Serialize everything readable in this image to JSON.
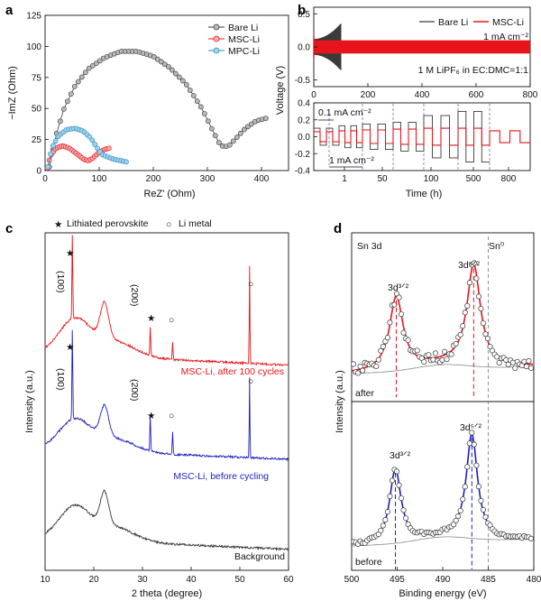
{
  "colors": {
    "bare": "#3a3a3a",
    "msc": "#e8141b",
    "mpc": "#2a8fc0",
    "blue": "#1d1fbf",
    "fit": "#e8141b",
    "guide": "#6a6ae0"
  },
  "panels": {
    "a": "a",
    "b": "b",
    "c": "c",
    "d": "d"
  },
  "chart_data": [
    {
      "panel": "a",
      "type": "scatter",
      "xlabel": "ReZ' (Ohm)",
      "ylabel": "−ImZ (Ohm)",
      "xlim": [
        0,
        450
      ],
      "ylim": [
        0,
        125
      ],
      "xticks": [
        "0",
        "100",
        "200",
        "300",
        "400"
      ],
      "yticks": [
        "0",
        "25",
        "50",
        "75",
        "100",
        "125"
      ],
      "legend_position": "top-right",
      "series": [
        {
          "name": "Bare Li",
          "color": "#3a3a3a",
          "x": [
            8,
            20,
            35,
            55,
            80,
            110,
            140,
            170,
            200,
            230,
            260,
            290,
            310,
            322,
            330,
            340,
            355,
            370,
            390,
            408
          ],
          "y": [
            3,
            28,
            50,
            68,
            82,
            91,
            96,
            96,
            92,
            83,
            70,
            50,
            32,
            22,
            19,
            20,
            27,
            34,
            40,
            42
          ]
        },
        {
          "name": "MSC-Li",
          "color": "#e8141b",
          "x": [
            4,
            10,
            20,
            32,
            45,
            60,
            72,
            80,
            88,
            98,
            110,
            118
          ],
          "y": [
            2,
            12,
            18,
            20,
            18,
            13,
            9,
            8,
            10,
            14,
            17,
            18
          ]
        },
        {
          "name": "MPC-Li",
          "color": "#2a8fc0",
          "x": [
            5,
            12,
            25,
            40,
            55,
            70,
            85,
            95,
            105,
            115,
            128,
            140,
            150
          ],
          "y": [
            3,
            18,
            28,
            33,
            34,
            32,
            26,
            19,
            13,
            11,
            9,
            8,
            7
          ]
        }
      ]
    },
    {
      "panel": "b",
      "type": "line",
      "ylabel": "Voltage (V)",
      "xlabel": "Time (h)",
      "top": {
        "xlim": [
          0,
          800
        ],
        "ylim": [
          -0.6,
          0.6
        ],
        "xticks": [
          "0",
          "200",
          "400",
          "600",
          "800"
        ],
        "yticks": [
          "-0.5",
          "0.0",
          "0.5"
        ],
        "legend": [
          {
            "name": "Bare Li",
            "color": "#3a3a3a"
          },
          {
            "name": "MSC-Li",
            "color": "#e8141b"
          }
        ],
        "legend_position": "top-right",
        "current_label": "1 mA cm⁻²",
        "electrolyte_label": "1 M LiPF₆ in EC:DMC=1:1",
        "bare_failure_hours": 100
      },
      "bottom": {
        "ylim": [
          -0.4,
          0.4
        ],
        "yticks": [
          "0.4",
          "0.2",
          "0.0",
          "-0.2",
          "-0.4"
        ],
        "xticks": [
          "1",
          "50",
          "100",
          "500",
          "800"
        ],
        "annotation_low": "0.1 mA cm⁻²",
        "annotation_high": "1 mA cm⁻²",
        "msc_overpotential": [
          0.06,
          0.07,
          0.08,
          0.09,
          0.1,
          0.1,
          0.07,
          0.07
        ],
        "bare_overpotential": [
          0.1,
          0.13,
          0.15,
          0.17,
          0.25,
          0.3,
          0.0,
          0.0
        ]
      }
    },
    {
      "panel": "c",
      "type": "line",
      "xlabel": "2 theta (degree)",
      "ylabel": "Intensity (a.u.)",
      "xlim": [
        10,
        60
      ],
      "xticks": [
        "10",
        "20",
        "30",
        "40",
        "50",
        "60"
      ],
      "legend_markers": [
        {
          "symbol": "★",
          "label": "Lithiated perovskite"
        },
        {
          "symbol": "○",
          "label": "Li metal"
        }
      ],
      "peaks": {
        "perovskite_100": 15.6,
        "halo": 22.2,
        "perovskite_200": 31.6,
        "li_1": 36.2,
        "li_2": 52.0
      },
      "series": [
        {
          "name": "MSC-Li, after 100 cycles",
          "color": "#e8141b"
        },
        {
          "name": "MSC-Li, before cycling",
          "color": "#1d1fbf"
        },
        {
          "name": "Background",
          "color": "#3a3a3a"
        }
      ],
      "peak_labels": {
        "p100": "(100)",
        "p200": "(200)"
      }
    },
    {
      "panel": "d",
      "type": "scatter",
      "xlabel": "Binding energy (eV)",
      "ylabel": "Intensity (a.u.)",
      "xlim": [
        500,
        480
      ],
      "xticks": [
        "500",
        "495",
        "490",
        "485",
        "480"
      ],
      "title": "Sn 3d",
      "sn0_label": "Sn⁰",
      "sn0_energy": 485.0,
      "series": [
        {
          "name": "after",
          "peak_labels": [
            "3d³ᐟ²",
            "3d⁵ᐟ²"
          ],
          "peaks_eV": [
            495.1,
            486.6
          ]
        },
        {
          "name": "before",
          "peak_labels": [
            "3d³ᐟ²",
            "3d⁵ᐟ²"
          ],
          "peaks_eV": [
            495.2,
            486.8
          ]
        }
      ]
    }
  ]
}
